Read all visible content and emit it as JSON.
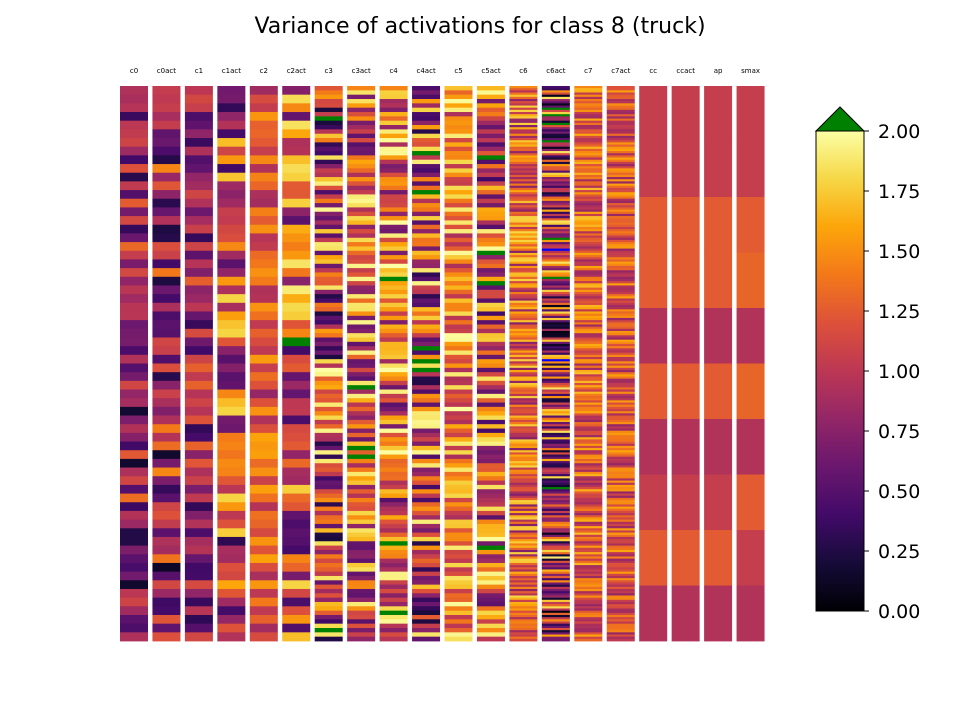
{
  "chart_data": {
    "type": "heatmap",
    "title": "Variance of activations for class 8 (truck)",
    "columns": [
      "c0",
      "c0act",
      "c1",
      "c1act",
      "c2",
      "c2act",
      "c3",
      "c3act",
      "c4",
      "c4act",
      "c5",
      "c5act",
      "c6",
      "c6act",
      "c7",
      "c7act",
      "cc",
      "ccact",
      "ap",
      "smax"
    ],
    "column_row_counts": [
      64,
      64,
      64,
      64,
      64,
      64,
      128,
      128,
      128,
      128,
      128,
      128,
      256,
      256,
      256,
      256,
      10,
      10,
      10,
      10
    ],
    "colorbar": {
      "colormap": "inferno",
      "vmin": 0.0,
      "vmax": 2.0,
      "ticks": [
        0.0,
        0.25,
        0.5,
        0.75,
        1.0,
        1.25,
        1.5,
        1.75,
        2.0
      ],
      "tick_labels": [
        "0.00",
        "0.25",
        "0.50",
        "0.75",
        "1.00",
        "1.25",
        "1.50",
        "1.75",
        "2.00"
      ],
      "extend": "max",
      "over_color": "#008000",
      "under_color": "#0000ff"
    },
    "class_output_variance": {
      "cc": [
        1.05,
        1.05,
        1.25,
        1.25,
        0.95,
        1.25,
        0.95,
        1.05,
        1.25,
        0.95
      ],
      "ccact": [
        1.05,
        1.05,
        1.25,
        1.25,
        0.95,
        1.25,
        0.95,
        1.05,
        1.25,
        0.95
      ],
      "ap": [
        1.05,
        1.05,
        1.25,
        1.25,
        0.95,
        1.25,
        0.95,
        1.05,
        1.25,
        0.95
      ],
      "smax": [
        1.05,
        1.05,
        1.25,
        1.3,
        0.95,
        1.3,
        0.95,
        1.25,
        1.05,
        0.95
      ]
    },
    "column_value_profile": {
      "c0": {
        "typical_low": 0.15,
        "typical_high": 1.35
      },
      "c0act": {
        "typical_low": 0.1,
        "typical_high": 1.5
      },
      "c1": {
        "typical_low": 0.3,
        "typical_high": 1.3
      },
      "c1act": {
        "typical_low": 0.3,
        "typical_high": 1.85
      },
      "c2": {
        "typical_low": 0.8,
        "typical_high": 1.6
      },
      "c2act": {
        "typical_low": 0.4,
        "typical_high": 1.95
      },
      "c3": {
        "typical_low": 0.2,
        "typical_high": 2.0
      },
      "c3act": {
        "typical_low": 0.5,
        "typical_high": 2.0
      },
      "c4": {
        "typical_low": 0.5,
        "typical_high": 2.0
      },
      "c4act": {
        "typical_low": 0.2,
        "typical_high": 2.0
      },
      "c5": {
        "typical_low": 0.9,
        "typical_high": 2.0
      },
      "c5act": {
        "typical_low": 0.4,
        "typical_high": 2.0
      },
      "c6": {
        "typical_low": 0.7,
        "typical_high": 1.8
      },
      "c6act": {
        "typical_low": 0.05,
        "typical_high": 1.9
      },
      "c7": {
        "typical_low": 0.8,
        "typical_high": 1.7
      },
      "c7act": {
        "typical_low": 0.8,
        "typical_high": 1.6
      }
    },
    "grid": false,
    "legend": "colorbar-right"
  }
}
